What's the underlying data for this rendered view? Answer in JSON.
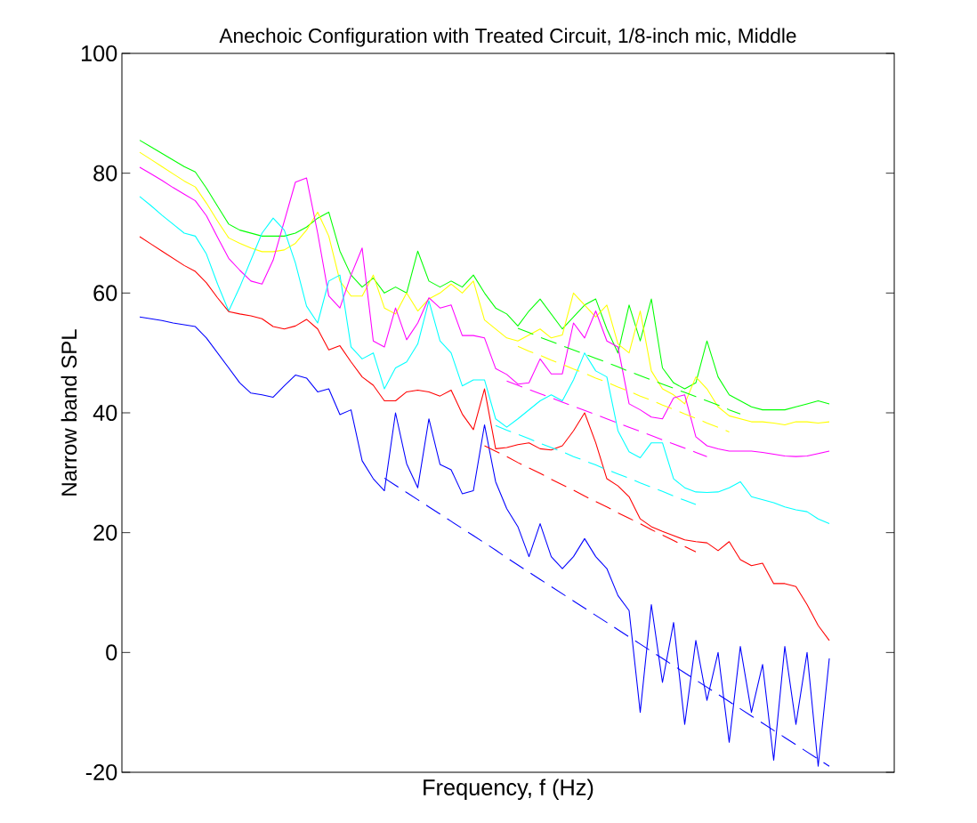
{
  "chart_data": {
    "type": "line",
    "title": "Anechoic Configuration with Treated Circuit, 1/8-inch mic, Middle",
    "xlabel": "Frequency, f (Hz)",
    "ylabel": "Narrow band SPL",
    "categories": [
      null,
      null,
      null,
      null,
      null,
      null,
      null,
      null,
      null,
      null,
      null,
      null,
      null,
      null,
      null,
      null,
      null,
      null,
      null,
      null,
      null,
      null,
      null,
      null,
      null,
      null,
      null,
      null,
      null,
      null,
      null,
      null,
      null,
      null,
      null,
      null,
      null,
      null,
      null,
      null,
      null,
      null,
      null,
      null,
      null,
      null,
      null,
      null,
      null,
      null,
      null,
      null,
      null,
      null,
      null,
      null,
      null,
      null,
      null,
      null,
      null,
      null,
      null
    ],
    "ylim": [
      -20,
      100
    ],
    "yticks": [
      -20,
      0,
      20,
      40,
      60,
      80,
      100
    ],
    "tick_labels": "y",
    "grid": false,
    "series": [
      {
        "color": "#00ff00",
        "values": [
          85.5,
          84.4,
          83.3,
          82.2,
          81.1,
          80.2,
          77.5,
          74.5,
          71.5,
          70.5,
          70,
          69.5,
          69.5,
          69.5,
          70,
          71,
          72.5,
          73.5,
          67,
          63,
          61,
          62.5,
          60,
          61,
          60,
          67,
          62,
          61,
          62,
          61,
          63,
          60,
          57.5,
          56.5,
          54.5,
          57,
          59,
          56.5,
          54,
          56,
          58,
          59,
          54,
          50,
          58,
          52,
          59,
          47.5,
          45,
          44,
          45,
          52,
          46,
          43,
          42,
          41,
          40.5,
          40.5,
          40.5,
          41,
          41.5,
          42,
          41.5
        ]
      },
      {
        "color": "#ffff00",
        "values": [
          83.5,
          82.3,
          81.1,
          79.9,
          78.7,
          77.7,
          75,
          72,
          69.2,
          68.3,
          67.5,
          66.9,
          66.9,
          67.2,
          68.3,
          70.5,
          73.5,
          69.5,
          62,
          59.5,
          59.5,
          63,
          57.5,
          56.5,
          60,
          57,
          59,
          60,
          61.5,
          60,
          62,
          55.5,
          54,
          52.5,
          52,
          53,
          54,
          52.5,
          53,
          60,
          58,
          56,
          58,
          51.5,
          50,
          57,
          47,
          44,
          43,
          41.5,
          46,
          44,
          41,
          39.5,
          39,
          38.5,
          38.5,
          38.3,
          38,
          38.5,
          38.5,
          38.3,
          38.5
        ]
      },
      {
        "color": "#ff00ff",
        "values": [
          81,
          79.9,
          78.8,
          77.6,
          76.5,
          75.4,
          72.9,
          69.3,
          65.8,
          63.8,
          62,
          61.5,
          65.5,
          72,
          78.5,
          79.2,
          70,
          59.5,
          57.5,
          63,
          67.5,
          52,
          51,
          57.5,
          52.2,
          55,
          59.2,
          57.5,
          58,
          52.9,
          52.9,
          52.5,
          47.4,
          46.4,
          44.8,
          45,
          49,
          46.5,
          46.5,
          55,
          52.5,
          57,
          52,
          51,
          41.5,
          40.5,
          39.3,
          39,
          42.5,
          43,
          36,
          34.5,
          34,
          33.6,
          33.6,
          33.6,
          33.4,
          33.1,
          32.8,
          32.7,
          32.8,
          33.2,
          33.6
        ]
      },
      {
        "color": "#00ffff",
        "values": [
          76.1,
          74.6,
          73,
          71.5,
          70,
          69.5,
          66.5,
          61.5,
          57,
          61,
          65.5,
          70,
          72.5,
          70.5,
          65,
          57.8,
          55,
          62,
          63,
          51,
          49,
          50,
          44,
          47.5,
          48.5,
          51.5,
          58.7,
          52,
          50,
          44.5,
          45.5,
          45.5,
          39,
          37.6,
          39,
          40.5,
          42,
          43,
          42,
          45.5,
          50,
          47,
          46,
          37,
          33.5,
          32.5,
          35,
          35,
          29,
          27.5,
          26.8,
          26.7,
          26.8,
          27.5,
          28.5,
          26,
          25.5,
          25,
          24.3,
          23.8,
          23.5,
          22.3,
          21.5
        ]
      },
      {
        "color": "#ff0000",
        "values": [
          69.4,
          68.2,
          67,
          65.8,
          64.6,
          63.6,
          61.7,
          59.2,
          56.9,
          56.5,
          56.2,
          55.7,
          54.4,
          54,
          54.5,
          55.6,
          54,
          50.5,
          51.2,
          48.5,
          46,
          44.6,
          42,
          42,
          43.5,
          43.8,
          43.5,
          42.8,
          43.8,
          39.8,
          37.2,
          44,
          34,
          34.2,
          34.7,
          35,
          34,
          33.8,
          34.5,
          37,
          40,
          35,
          29,
          27.8,
          26,
          22.3,
          21,
          20.2,
          19.5,
          18.8,
          18.5,
          18.3,
          17,
          18.5,
          15.5,
          14.5,
          14.9,
          11.5,
          11.5,
          11,
          8,
          4.5,
          2
        ]
      },
      {
        "color": "#0000ff",
        "values": [
          56,
          55.7,
          55.4,
          55,
          54.7,
          54.4,
          52.5,
          50,
          47.5,
          45,
          43.3,
          43,
          42.6,
          44.5,
          46.3,
          45.8,
          43.5,
          44,
          39.7,
          40.5,
          32,
          29,
          27,
          40,
          31.5,
          27.5,
          39,
          31.4,
          30.5,
          26.5,
          27,
          38,
          28.5,
          24,
          21,
          16,
          21.5,
          16,
          14,
          16,
          19,
          16,
          14,
          9.5,
          7,
          -10,
          8,
          -5,
          5,
          -12,
          2,
          -8,
          0,
          -15,
          1,
          -10,
          -2,
          -18,
          1,
          -12,
          0,
          -19,
          -1
        ]
      },
      {
        "type": "line",
        "line_style": "dashed",
        "color": "#00ff00",
        "values": [
          null,
          null,
          null,
          null,
          null,
          null,
          null,
          null,
          null,
          null,
          null,
          null,
          null,
          null,
          null,
          null,
          null,
          null,
          null,
          null,
          null,
          null,
          null,
          null,
          null,
          null,
          null,
          null,
          null,
          null,
          null,
          null,
          null,
          null,
          54.1,
          53.4,
          52.6,
          51.9,
          51.2,
          50.5,
          49.8,
          49.1,
          48.4,
          47.7,
          46.9,
          46.2,
          45.5,
          44.8,
          44.1,
          43.4,
          42.7,
          42,
          41.3,
          40.5,
          39.8,
          null,
          null,
          null,
          null,
          null,
          null,
          null,
          null
        ]
      },
      {
        "type": "line",
        "line_style": "dashed",
        "color": "#ffff00",
        "values": [
          null,
          null,
          null,
          null,
          null,
          null,
          null,
          null,
          null,
          null,
          null,
          null,
          null,
          null,
          null,
          null,
          null,
          null,
          null,
          null,
          null,
          null,
          null,
          null,
          null,
          null,
          null,
          null,
          null,
          null,
          null,
          null,
          null,
          null,
          51.1,
          50.3,
          49.6,
          48.8,
          48.1,
          47.3,
          46.6,
          45.8,
          45.1,
          44.3,
          43.6,
          42.8,
          42.1,
          41.3,
          40.6,
          39.8,
          39.1,
          38.3,
          37.6,
          36.8,
          null,
          null,
          null,
          null,
          null,
          null,
          null,
          null,
          null
        ]
      },
      {
        "type": "line",
        "line_style": "dashed",
        "color": "#ff00ff",
        "values": [
          null,
          null,
          null,
          null,
          null,
          null,
          null,
          null,
          null,
          null,
          null,
          null,
          null,
          null,
          null,
          null,
          null,
          null,
          null,
          null,
          null,
          null,
          null,
          null,
          null,
          null,
          null,
          null,
          null,
          null,
          null,
          null,
          null,
          45.3,
          44.6,
          43.9,
          43.2,
          42.5,
          41.8,
          41.1,
          40.4,
          39.7,
          39,
          38.3,
          37.6,
          36.9,
          36.2,
          35.5,
          34.8,
          34.1,
          33.4,
          32.7,
          null,
          null,
          null,
          null,
          null,
          null,
          null,
          null,
          null,
          null,
          null
        ]
      },
      {
        "type": "line",
        "line_style": "dashed",
        "color": "#00ffff",
        "values": [
          null,
          null,
          null,
          null,
          null,
          null,
          null,
          null,
          null,
          null,
          null,
          null,
          null,
          null,
          null,
          null,
          null,
          null,
          null,
          null,
          null,
          null,
          null,
          null,
          null,
          null,
          null,
          null,
          null,
          null,
          null,
          null,
          37.9,
          37.1,
          36.4,
          35.7,
          34.9,
          34.2,
          33.5,
          32.7,
          32,
          31.3,
          30.5,
          29.8,
          29.1,
          28.3,
          27.6,
          26.9,
          26.1,
          25.4,
          24.7,
          null,
          null,
          null,
          null,
          null,
          null,
          null,
          null,
          null,
          null,
          null,
          null
        ]
      },
      {
        "type": "line",
        "line_style": "dashed",
        "color": "#ff0000",
        "values": [
          null,
          null,
          null,
          null,
          null,
          null,
          null,
          null,
          null,
          null,
          null,
          null,
          null,
          null,
          null,
          null,
          null,
          null,
          null,
          null,
          null,
          null,
          null,
          null,
          null,
          null,
          null,
          null,
          null,
          null,
          null,
          34.5,
          33.6,
          32.7,
          31.7,
          30.8,
          29.9,
          28.9,
          28,
          27.1,
          26.1,
          25.2,
          24.3,
          23.3,
          22.4,
          21.5,
          20.5,
          19.6,
          18.7,
          17.7,
          16.8,
          null,
          null,
          null,
          null,
          null,
          null,
          null,
          null,
          null,
          null,
          null,
          null
        ]
      },
      {
        "type": "line",
        "line_style": "dashed",
        "color": "#0000ff",
        "values": [
          null,
          null,
          null,
          null,
          null,
          null,
          null,
          null,
          null,
          null,
          null,
          null,
          null,
          null,
          null,
          null,
          null,
          null,
          null,
          null,
          null,
          null,
          29.1,
          27.9,
          26.7,
          25.5,
          24.3,
          23.1,
          21.9,
          20.7,
          19.5,
          18.3,
          17.1,
          15.8,
          14.6,
          13.4,
          12.2,
          11,
          9.8,
          8.6,
          7.4,
          6.2,
          5,
          3.8,
          2.6,
          1.4,
          0.2,
          -1,
          -2.2,
          -3.4,
          -4.6,
          -5.8,
          -7,
          -8.2,
          -9.4,
          -10.6,
          -11.8,
          -13,
          -14.2,
          -15.4,
          -16.6,
          -17.8,
          -19
        ]
      }
    ]
  }
}
